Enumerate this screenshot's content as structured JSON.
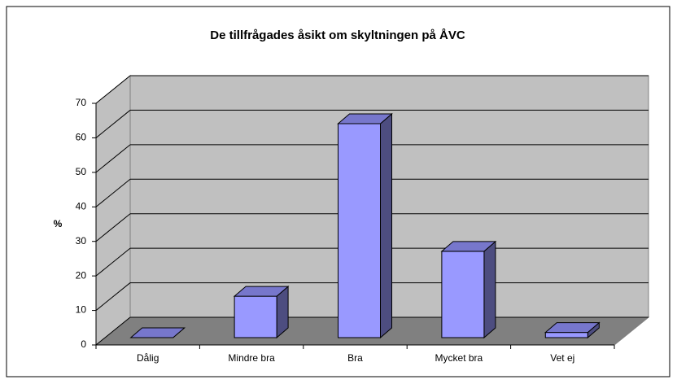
{
  "chart_data": {
    "type": "bar",
    "title": "De tillfrågades åsikt om skyltningen på ÅVC",
    "y_label": "%",
    "categories": [
      "Dålig",
      "Mindre bra",
      "Bra",
      "Mycket bra",
      "Vet ej"
    ],
    "values": [
      0,
      12,
      62,
      25,
      1.5
    ],
    "color": "#9999ff",
    "ylim": [
      0,
      70
    ],
    "yticks": [
      0,
      10,
      20,
      30,
      40,
      50,
      60,
      70
    ],
    "grid": true
  }
}
